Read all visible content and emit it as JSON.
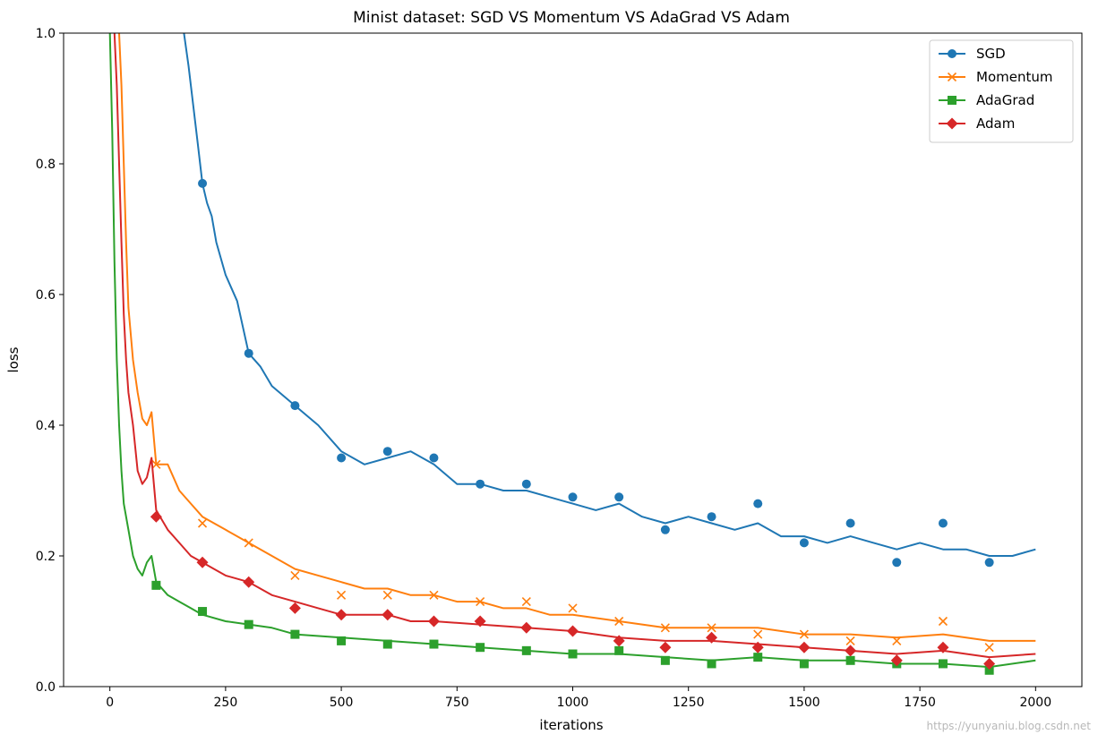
{
  "chart_data": {
    "type": "line",
    "title": "Minist dataset: SGD VS Momentum VS AdaGrad VS Adam",
    "xlabel": "iterations",
    "ylabel": "loss",
    "xlim": [
      -100,
      2100
    ],
    "ylim": [
      0.0,
      1.0
    ],
    "xticks": [
      0,
      250,
      500,
      750,
      1000,
      1250,
      1500,
      1750,
      2000
    ],
    "xtick_labels": [
      "0",
      "250",
      "500",
      "750",
      "1000",
      "1250",
      "1500",
      "1750",
      "2000"
    ],
    "yticks": [
      0.0,
      0.2,
      0.4,
      0.6,
      0.8,
      1.0
    ],
    "ytick_labels": [
      "0.0",
      "0.2",
      "0.4",
      "0.6",
      "0.8",
      "1.0"
    ],
    "grid": false,
    "legend_position": "top-right",
    "series": [
      {
        "name": "SGD",
        "color": "#1f77b4",
        "marker": "circle",
        "marker_x": [
          200,
          300,
          400,
          500,
          600,
          700,
          800,
          900,
          1000,
          1100,
          1200,
          1300,
          1400,
          1500,
          1600,
          1700,
          1800,
          1900
        ],
        "marker_y": [
          0.77,
          0.51,
          0.43,
          0.35,
          0.36,
          0.35,
          0.31,
          0.31,
          0.29,
          0.29,
          0.24,
          0.26,
          0.28,
          0.22,
          0.25,
          0.19,
          0.25,
          0.19
        ],
        "x": [
          160,
          170,
          180,
          190,
          200,
          210,
          220,
          230,
          250,
          275,
          300,
          325,
          350,
          400,
          450,
          500,
          550,
          600,
          650,
          700,
          750,
          800,
          850,
          900,
          950,
          1000,
          1050,
          1100,
          1150,
          1200,
          1250,
          1300,
          1350,
          1400,
          1450,
          1500,
          1550,
          1600,
          1650,
          1700,
          1750,
          1800,
          1850,
          1900,
          1950,
          2000
        ],
        "y": [
          1.0,
          0.95,
          0.89,
          0.83,
          0.77,
          0.74,
          0.72,
          0.68,
          0.63,
          0.59,
          0.51,
          0.49,
          0.46,
          0.43,
          0.4,
          0.36,
          0.34,
          0.35,
          0.36,
          0.34,
          0.31,
          0.31,
          0.3,
          0.3,
          0.29,
          0.28,
          0.27,
          0.28,
          0.26,
          0.25,
          0.26,
          0.25,
          0.24,
          0.25,
          0.23,
          0.23,
          0.22,
          0.23,
          0.22,
          0.21,
          0.22,
          0.21,
          0.21,
          0.2,
          0.2,
          0.21
        ]
      },
      {
        "name": "Momentum",
        "color": "#ff7f0e",
        "marker": "x",
        "marker_x": [
          100,
          200,
          300,
          400,
          500,
          600,
          700,
          800,
          900,
          1000,
          1100,
          1200,
          1300,
          1400,
          1500,
          1600,
          1700,
          1800,
          1900
        ],
        "marker_y": [
          0.34,
          0.25,
          0.22,
          0.17,
          0.14,
          0.14,
          0.14,
          0.13,
          0.13,
          0.12,
          0.1,
          0.09,
          0.09,
          0.08,
          0.08,
          0.07,
          0.07,
          0.1,
          0.06
        ],
        "x": [
          20,
          25,
          30,
          35,
          40,
          50,
          60,
          70,
          80,
          90,
          100,
          125,
          150,
          175,
          200,
          250,
          300,
          350,
          400,
          450,
          500,
          550,
          600,
          650,
          700,
          750,
          800,
          850,
          900,
          950,
          1000,
          1100,
          1200,
          1300,
          1400,
          1500,
          1600,
          1700,
          1800,
          1900,
          2000
        ],
        "y": [
          1.0,
          0.92,
          0.8,
          0.68,
          0.58,
          0.5,
          0.45,
          0.41,
          0.4,
          0.42,
          0.34,
          0.34,
          0.3,
          0.28,
          0.26,
          0.24,
          0.22,
          0.2,
          0.18,
          0.17,
          0.16,
          0.15,
          0.15,
          0.14,
          0.14,
          0.13,
          0.13,
          0.12,
          0.12,
          0.11,
          0.11,
          0.1,
          0.09,
          0.09,
          0.09,
          0.08,
          0.08,
          0.075,
          0.08,
          0.07,
          0.07
        ]
      },
      {
        "name": "AdaGrad",
        "color": "#2ca02c",
        "marker": "square",
        "marker_x": [
          100,
          200,
          300,
          400,
          500,
          600,
          700,
          800,
          900,
          1000,
          1100,
          1200,
          1300,
          1400,
          1500,
          1600,
          1700,
          1800,
          1900
        ],
        "marker_y": [
          0.155,
          0.115,
          0.095,
          0.08,
          0.07,
          0.065,
          0.065,
          0.06,
          0.055,
          0.05,
          0.055,
          0.04,
          0.035,
          0.045,
          0.035,
          0.04,
          0.035,
          0.035,
          0.025
        ],
        "x": [
          0,
          5,
          10,
          15,
          20,
          25,
          30,
          40,
          50,
          60,
          70,
          80,
          90,
          100,
          125,
          150,
          175,
          200,
          250,
          300,
          350,
          400,
          500,
          600,
          700,
          800,
          900,
          1000,
          1100,
          1200,
          1300,
          1400,
          1500,
          1600,
          1700,
          1800,
          1900,
          2000
        ],
        "y": [
          1.0,
          0.85,
          0.65,
          0.5,
          0.4,
          0.33,
          0.28,
          0.24,
          0.2,
          0.18,
          0.17,
          0.19,
          0.2,
          0.16,
          0.14,
          0.13,
          0.12,
          0.11,
          0.1,
          0.095,
          0.09,
          0.08,
          0.075,
          0.07,
          0.065,
          0.06,
          0.055,
          0.05,
          0.05,
          0.045,
          0.04,
          0.045,
          0.04,
          0.04,
          0.035,
          0.035,
          0.03,
          0.04
        ]
      },
      {
        "name": "Adam",
        "color": "#d62728",
        "marker": "diamond",
        "marker_x": [
          100,
          200,
          300,
          400,
          500,
          600,
          700,
          800,
          900,
          1000,
          1100,
          1200,
          1300,
          1400,
          1500,
          1600,
          1700,
          1800,
          1900
        ],
        "marker_y": [
          0.26,
          0.19,
          0.16,
          0.12,
          0.11,
          0.11,
          0.1,
          0.1,
          0.09,
          0.085,
          0.07,
          0.06,
          0.075,
          0.06,
          0.06,
          0.055,
          0.04,
          0.06,
          0.035
        ],
        "x": [
          10,
          15,
          20,
          25,
          30,
          35,
          40,
          50,
          60,
          70,
          80,
          90,
          100,
          125,
          150,
          175,
          200,
          250,
          300,
          350,
          400,
          450,
          500,
          550,
          600,
          650,
          700,
          800,
          900,
          1000,
          1100,
          1200,
          1300,
          1400,
          1500,
          1600,
          1700,
          1800,
          1900,
          2000
        ],
        "y": [
          1.0,
          0.92,
          0.8,
          0.68,
          0.57,
          0.5,
          0.45,
          0.4,
          0.33,
          0.31,
          0.32,
          0.35,
          0.27,
          0.24,
          0.22,
          0.2,
          0.19,
          0.17,
          0.16,
          0.14,
          0.13,
          0.12,
          0.11,
          0.11,
          0.11,
          0.1,
          0.1,
          0.095,
          0.09,
          0.085,
          0.075,
          0.07,
          0.07,
          0.065,
          0.06,
          0.055,
          0.05,
          0.055,
          0.045,
          0.05
        ]
      }
    ]
  },
  "watermark": "https://yunyaniu.blog.csdn.net"
}
